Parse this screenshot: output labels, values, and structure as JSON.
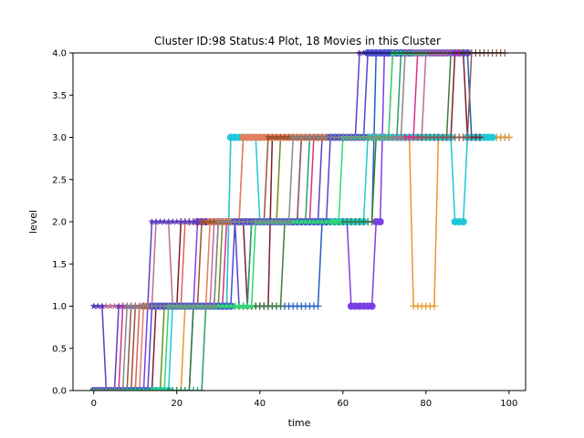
{
  "chart_data": {
    "type": "line",
    "title": "Cluster ID:98 Status:4 Plot, 18 Movies in this Cluster",
    "xlabel": "time",
    "ylabel": "level",
    "xlim": [
      -5,
      104
    ],
    "ylim": [
      0,
      4
    ],
    "xticks": [
      0,
      20,
      40,
      60,
      80,
      100
    ],
    "xtick_labels": [
      "0",
      "20",
      "40",
      "60",
      "80",
      "100"
    ],
    "yticks": [
      0,
      0.5,
      1,
      1.5,
      2,
      2.5,
      3,
      3.5,
      4
    ],
    "ytick_labels": [
      "0.0",
      "0.5",
      "1.0",
      "1.5",
      "2.0",
      "2.5",
      "3.0",
      "3.5",
      "4.0"
    ],
    "grid": false,
    "legend": false,
    "series": [
      {
        "color": "#1f5fbf",
        "marker": "plus",
        "steps": [
          [
            0,
            0
          ],
          [
            24,
            1
          ],
          [
            55,
            2
          ],
          [
            68,
            4
          ],
          [
            91,
            3
          ],
          [
            100,
            3
          ]
        ]
      },
      {
        "color": "#e89a2a",
        "marker": "plus",
        "steps": [
          [
            0,
            0
          ],
          [
            22,
            1
          ],
          [
            33,
            3
          ],
          [
            77,
            1
          ],
          [
            83,
            3
          ],
          [
            100,
            3
          ]
        ]
      },
      {
        "color": "#7b3fe4",
        "marker": "circle",
        "steps": [
          [
            0,
            0
          ],
          [
            13,
            1
          ],
          [
            25,
            2
          ],
          [
            62,
            1
          ],
          [
            68,
            2
          ],
          [
            70,
            4
          ],
          [
            90,
            4
          ]
        ]
      },
      {
        "color": "#1ec8d6",
        "marker": "circle",
        "steps": [
          [
            0,
            0
          ],
          [
            19,
            1
          ],
          [
            33,
            3
          ],
          [
            40,
            2
          ],
          [
            66,
            3
          ],
          [
            87,
            2
          ],
          [
            90,
            3
          ],
          [
            96,
            3
          ]
        ]
      },
      {
        "color": "#c06a9a",
        "marker": "star",
        "steps": [
          [
            0,
            1
          ],
          [
            15,
            2
          ],
          [
            19,
            1
          ],
          [
            29,
            2
          ],
          [
            50,
            3
          ],
          [
            80,
            4
          ],
          [
            85,
            4
          ]
        ]
      },
      {
        "color": "#7a1f2a",
        "marker": "plus",
        "steps": [
          [
            0,
            0
          ],
          [
            15,
            1
          ],
          [
            21,
            2
          ],
          [
            37,
            1
          ],
          [
            43,
            3
          ],
          [
            84,
            3
          ],
          [
            87,
            4
          ],
          [
            90,
            3
          ],
          [
            93,
            3
          ]
        ]
      },
      {
        "color": "#3d7a3d",
        "marker": "plus",
        "steps": [
          [
            0,
            0
          ],
          [
            24,
            1
          ],
          [
            46,
            2
          ],
          [
            68,
            3
          ],
          [
            86,
            4
          ],
          [
            94,
            4
          ]
        ]
      },
      {
        "color": "#e06060",
        "marker": "star",
        "steps": [
          [
            0,
            0
          ],
          [
            11,
            1
          ],
          [
            22,
            2
          ],
          [
            36,
            3
          ],
          [
            72,
            4
          ],
          [
            78,
            4
          ]
        ]
      },
      {
        "color": "#5a3fc0",
        "marker": "star",
        "steps": [
          [
            0,
            1
          ],
          [
            3,
            0
          ],
          [
            6,
            1
          ],
          [
            14,
            2
          ],
          [
            35,
            1
          ],
          [
            38,
            2
          ],
          [
            55,
            3
          ],
          [
            64,
            4
          ],
          [
            70,
            4
          ]
        ]
      },
      {
        "color": "#8a5a50",
        "marker": "plus",
        "steps": [
          [
            0,
            0
          ],
          [
            9,
            1
          ],
          [
            30,
            2
          ],
          [
            50,
            3
          ],
          [
            91,
            4
          ],
          [
            99,
            4
          ]
        ]
      },
      {
        "color": "#6b8e23",
        "marker": "plus",
        "steps": [
          [
            0,
            0
          ],
          [
            17,
            1
          ],
          [
            31,
            2
          ],
          [
            45,
            3
          ],
          [
            68,
            3
          ]
        ]
      },
      {
        "color": "#e08060",
        "marker": "circle",
        "steps": [
          [
            0,
            0
          ],
          [
            12,
            1
          ],
          [
            28,
            2
          ],
          [
            36,
            3
          ],
          [
            60,
            3
          ]
        ]
      },
      {
        "color": "#2a9d6a",
        "marker": "plus",
        "steps": [
          [
            0,
            0
          ],
          [
            27,
            1
          ],
          [
            38,
            2
          ],
          [
            52,
            3
          ],
          [
            74,
            4
          ],
          [
            82,
            4
          ]
        ]
      },
      {
        "color": "#a0522d",
        "marker": "star",
        "steps": [
          [
            0,
            0
          ],
          [
            10,
            1
          ],
          [
            26,
            2
          ],
          [
            42,
            3
          ],
          [
            58,
            3
          ]
        ]
      },
      {
        "color": "#d6308a",
        "marker": "plus",
        "steps": [
          [
            0,
            0
          ],
          [
            7,
            1
          ],
          [
            32,
            2
          ],
          [
            53,
            3
          ],
          [
            78,
            4
          ],
          [
            88,
            4
          ]
        ]
      },
      {
        "color": "#4a4ad6",
        "marker": "circle",
        "steps": [
          [
            0,
            0
          ],
          [
            14,
            1
          ],
          [
            34,
            2
          ],
          [
            57,
            3
          ],
          [
            66,
            4
          ],
          [
            76,
            4
          ]
        ]
      },
      {
        "color": "#2ed870",
        "marker": "star",
        "steps": [
          [
            0,
            0
          ],
          [
            18,
            1
          ],
          [
            39,
            2
          ],
          [
            60,
            3
          ],
          [
            72,
            4
          ],
          [
            80,
            4
          ]
        ]
      },
      {
        "color": "#888888",
        "marker": "plus",
        "steps": [
          [
            0,
            0
          ],
          [
            8,
            1
          ],
          [
            30,
            2
          ],
          [
            48,
            3
          ],
          [
            75,
            4
          ],
          [
            86,
            4
          ]
        ]
      }
    ]
  }
}
